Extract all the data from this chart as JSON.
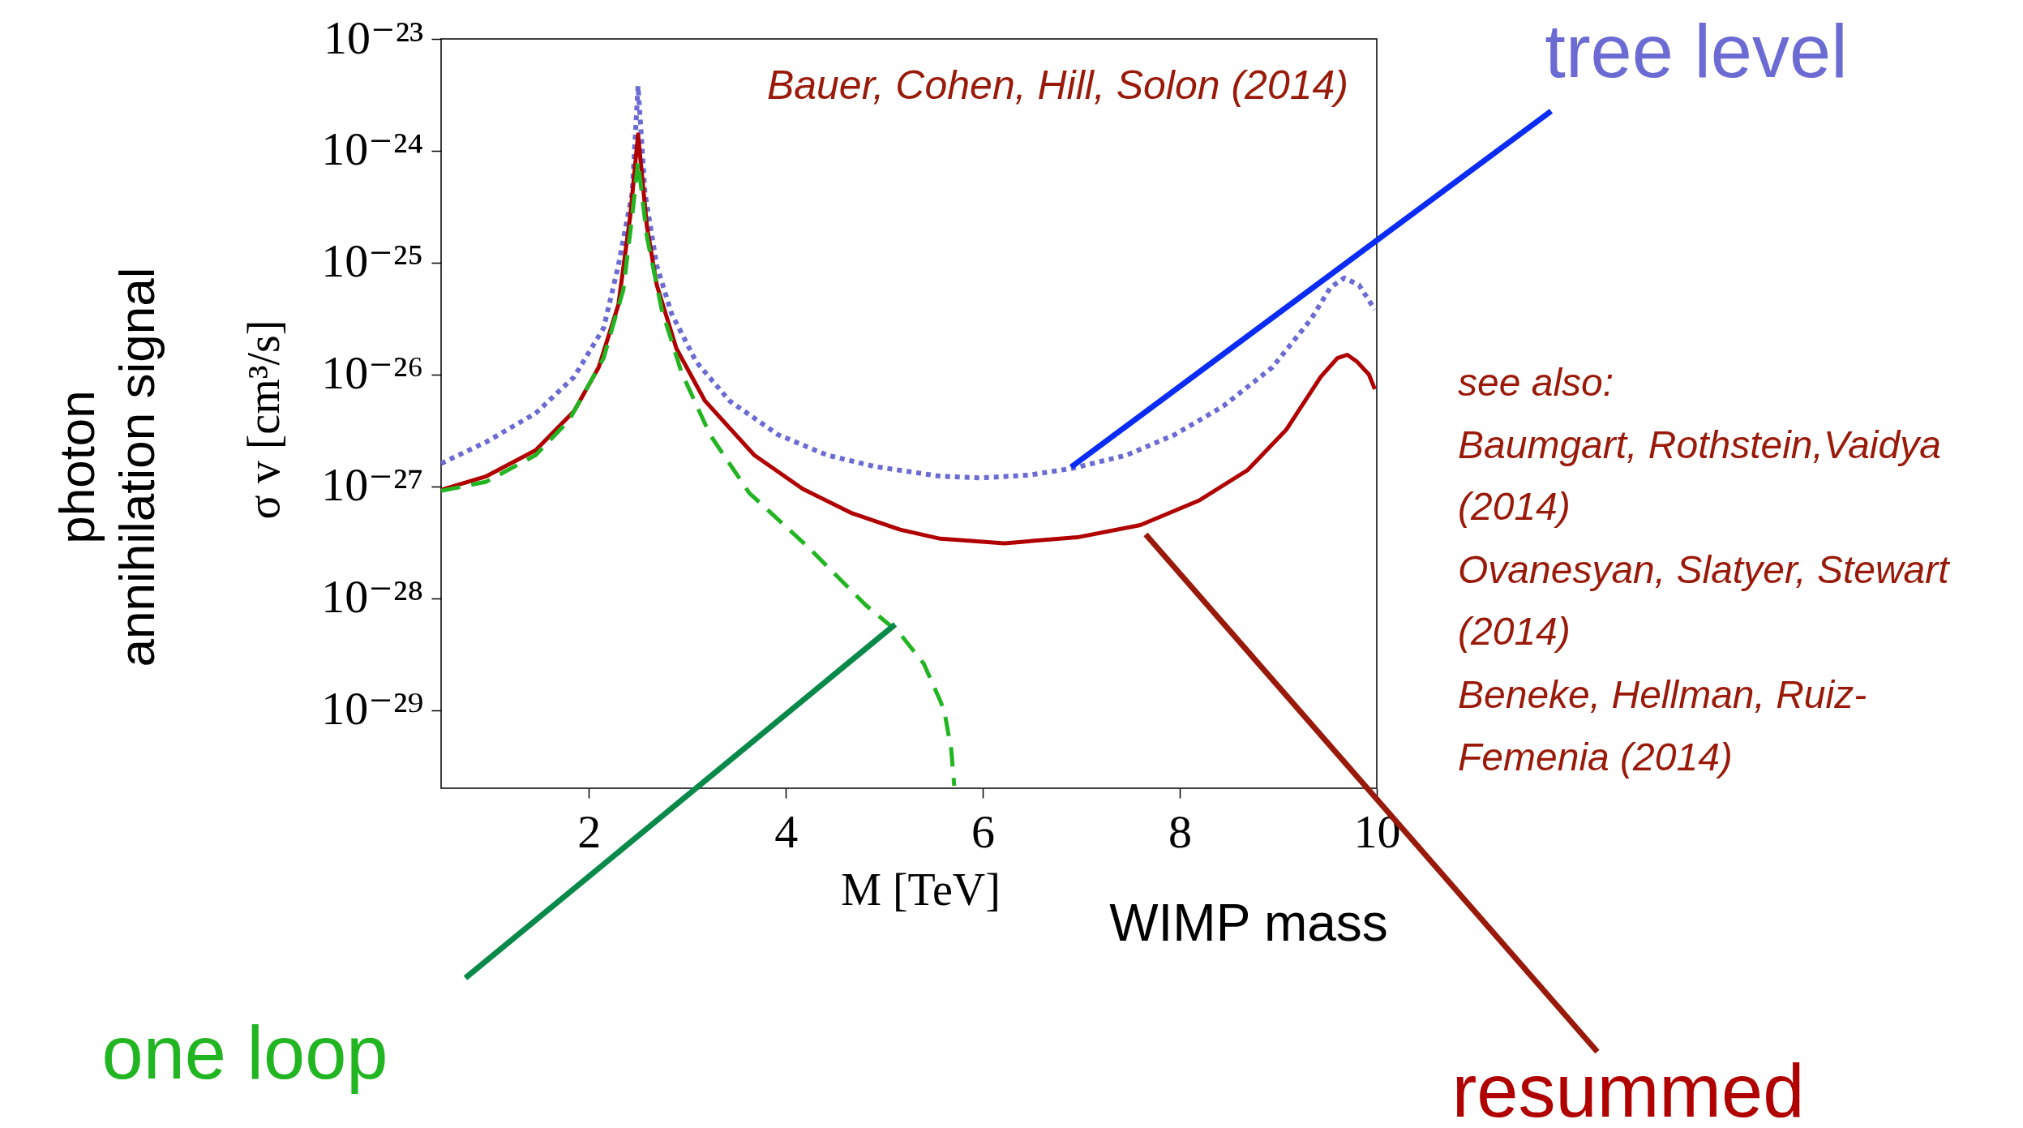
{
  "chart_data": {
    "type": "line",
    "xlabel": "M [TeV]",
    "ylabel": "σ v [cm³/s]",
    "log": "y",
    "xlim": [
      0.5,
      10
    ],
    "ylim": [
      2e-30,
      1e-23
    ],
    "xticks": [
      2,
      4,
      6,
      8,
      10
    ],
    "yticks": [
      {
        "value": 1e-23,
        "label": "10⁻²³"
      },
      {
        "value": 1e-24,
        "label": "10⁻²⁴"
      },
      {
        "value": 1e-25,
        "label": "10⁻²⁵"
      },
      {
        "value": 1e-26,
        "label": "10⁻²⁶"
      },
      {
        "value": 1e-27,
        "label": "10⁻²⁷"
      },
      {
        "value": 1e-28,
        "label": "10⁻²⁸"
      },
      {
        "value": 1e-29,
        "label": "10⁻²⁹"
      }
    ],
    "series": [
      {
        "name": "tree level",
        "color": "#6b6bd3",
        "line_style": "dotted",
        "x": [
          0.5,
          0.96,
          1.46,
          1.85,
          2.15,
          2.3,
          2.44,
          2.5,
          2.57,
          2.69,
          2.84,
          3.09,
          3.43,
          3.92,
          4.42,
          4.91,
          5.57,
          5.98,
          6.47,
          6.91,
          7.46,
          7.95,
          8.44,
          8.94,
          9.33,
          9.53,
          9.67,
          9.82,
          9.98
        ],
        "values": [
          1.6e-27,
          2.5e-27,
          4.5e-27,
          9.5e-27,
          2.6e-26,
          9.4e-26,
          4.2e-25,
          3.8e-24,
          4.2e-25,
          9.4e-26,
          3.5e-26,
          1.3e-26,
          5.8e-27,
          2.9e-27,
          1.9e-27,
          1.5e-27,
          1.23e-27,
          1.19e-27,
          1.26e-27,
          1.45e-27,
          1.9e-27,
          2.9e-27,
          5.2e-27,
          1.16e-26,
          3.1e-26,
          6e-26,
          7.3e-26,
          6.3e-26,
          3.8e-26
        ]
      },
      {
        "name": "resummed",
        "color": "#b00000",
        "line_style": "solid",
        "x": [
          0.5,
          0.96,
          1.46,
          1.85,
          2.1,
          2.3,
          2.42,
          2.5,
          2.59,
          2.69,
          2.89,
          3.18,
          3.68,
          4.17,
          4.66,
          5.16,
          5.57,
          6.22,
          6.96,
          7.6,
          8.2,
          8.69,
          9.08,
          9.43,
          9.6,
          9.7,
          9.8,
          9.92,
          9.98
        ],
        "values": [
          9.3e-28,
          1.23e-27,
          2.1e-27,
          4.7e-27,
          1.16e-26,
          4.2e-26,
          2.6e-25,
          1.4e-24,
          2.1e-25,
          6.3e-26,
          1.7e-26,
          5.8e-27,
          1.9e-27,
          9.5e-28,
          5.8e-28,
          4.1e-28,
          3.4e-28,
          3.1e-28,
          3.5e-28,
          4.5e-28,
          7.5e-28,
          1.4e-27,
          3.2e-27,
          9.5e-27,
          1.4e-26,
          1.5e-26,
          1.3e-26,
          1e-26,
          7.4e-27
        ]
      },
      {
        "name": "one loop",
        "color": "#22b522",
        "line_style": "dashed",
        "x": [
          0.5,
          0.96,
          1.46,
          1.8,
          2.15,
          2.35,
          2.44,
          2.5,
          2.59,
          2.74,
          2.94,
          3.23,
          3.63,
          4.22,
          4.81,
          5.16,
          5.4,
          5.57,
          5.61,
          5.68,
          5.71
        ],
        "values": [
          9.1e-28,
          1.1e-27,
          1.9e-27,
          3.9e-27,
          1.4e-26,
          5.7e-26,
          2.6e-25,
          8e-25,
          1.7e-25,
          3.8e-26,
          1.05e-26,
          2.9e-27,
          8.7e-28,
          2.9e-28,
          8.7e-29,
          4.8e-29,
          2.6e-29,
          1.2e-29,
          9.7e-30,
          4.4e-30,
          2.1e-30
        ]
      }
    ],
    "annotations": [
      "photon annihilation signal",
      "WIMP mass",
      "Bauer, Cohen, Hill, Solon (2014)",
      "see also:",
      "Baumgart, Rothstein,Vaidya",
      "(2014)",
      "Ovanesyan, Slatyer, Stewart",
      "(2014)",
      "Beneke, Hellman, Ruiz-",
      "Femenia (2014)"
    ]
  }
}
